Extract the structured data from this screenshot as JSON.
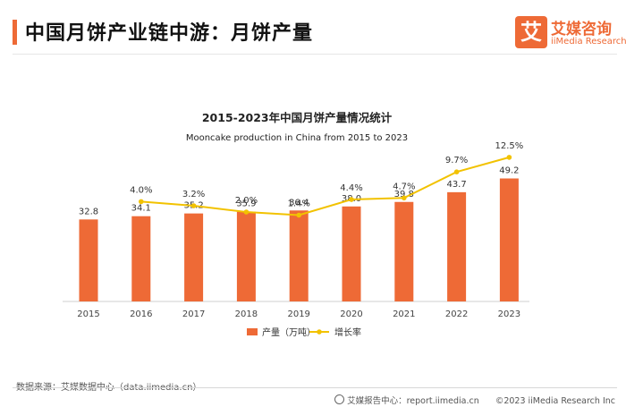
{
  "header": {
    "title": "中国月饼产业链中游：月饼产量"
  },
  "logo": {
    "mark": "艾",
    "name_cn": "艾媒咨询",
    "name_en": "iiMedia Research"
  },
  "footer": {
    "source": "数据来源：艾媒数据中心（data.iimedia.cn）",
    "platform": "艾媒报告中心：report.iimedia.cn",
    "copyright": "©2023  iiMedia Research  Inc"
  },
  "colors": {
    "bar": "#ee6a36",
    "line": "#f2c200",
    "accent": "#ee6a36"
  },
  "chart_data": {
    "type": "bar",
    "title": "2015-2023年中国月饼产量情况统计",
    "subtitle": "Mooncake production  in China from 2015 to 2023",
    "categories": [
      "2015",
      "2016",
      "2017",
      "2018",
      "2019",
      "2020",
      "2021",
      "2022",
      "2023"
    ],
    "series": [
      {
        "name": "产量（万吨）",
        "type": "bar",
        "values": [
          32.8,
          34.1,
          35.2,
          35.9,
          36.4,
          38.0,
          39.8,
          43.7,
          49.2
        ],
        "labels": [
          "32.8",
          "34.1",
          "35.2",
          "35.9",
          "36.4",
          "38.0",
          "39.8",
          "43.7",
          "49.2"
        ]
      },
      {
        "name": "增长率",
        "type": "line",
        "values": [
          null,
          4.0,
          3.2,
          2.0,
          1.4,
          4.4,
          4.7,
          9.7,
          12.5
        ],
        "labels": [
          "",
          "4.0%",
          "3.2%",
          "2.0%",
          "1.4%",
          "4.4%",
          "4.7%",
          "9.7%",
          "12.5%"
        ]
      }
    ],
    "legend_position": "bottom",
    "grid": false
  }
}
